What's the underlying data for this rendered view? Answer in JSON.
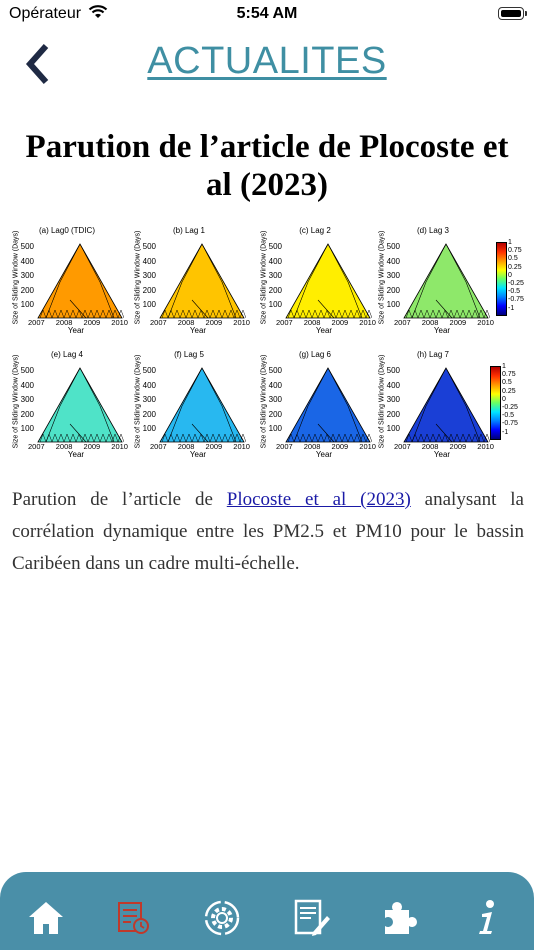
{
  "status_bar": {
    "carrier": "Opérateur",
    "time": "5:54 AM"
  },
  "header": {
    "title": "ACTUALITES",
    "back_icon": "chevron-left-icon"
  },
  "article": {
    "title": "Parution de l’article de Plocoste et al (2023)",
    "body_before": "Parution de l’article de ",
    "link_text": "Plocoste et al (2023)",
    "body_after": " analysant la corrélation dynamique entre les PM2.5 et PM10 pour le bassin Caribéen dans un cadre multi-échelle."
  },
  "figure": {
    "y_axis_label": "Size of Sliding Window (Days)",
    "x_axis_label": "Year",
    "y_ticks": [
      "500",
      "400",
      "300",
      "200",
      "100"
    ],
    "x_ticks": [
      "2007",
      "2008",
      "2009",
      "2010"
    ],
    "panels": [
      {
        "title": "(a) Lag0 (TDIC)",
        "fill": "#ff9a00"
      },
      {
        "title": "(b) Lag 1",
        "fill": "#ffc400"
      },
      {
        "title": "(c) Lag 2",
        "fill": "#ffee00"
      },
      {
        "title": "(d) Lag 3",
        "fill": "#8ee86a"
      },
      {
        "title": "(e) Lag 4",
        "fill": "#4fe3c8"
      },
      {
        "title": "(f) Lag 5",
        "fill": "#28b8f0"
      },
      {
        "title": "(g) Lag 6",
        "fill": "#1a66e6"
      },
      {
        "title": "(h) Lag 7",
        "fill": "#1a3fd6"
      }
    ],
    "colorbar_ticks": [
      "1",
      "0.75",
      "0.5",
      "0.25",
      "0",
      "-0.25",
      "-0.5",
      "-0.75",
      "-1"
    ]
  },
  "tabs": [
    {
      "icon": "home-icon",
      "color": "#ffffff"
    },
    {
      "icon": "calendar-list-icon",
      "color": "#c0392b"
    },
    {
      "icon": "gear-cycle-icon",
      "color": "#ffffff"
    },
    {
      "icon": "document-pen-icon",
      "color": "#ffffff"
    },
    {
      "icon": "puzzle-icon",
      "color": "#ffffff"
    },
    {
      "icon": "info-icon",
      "color": "#ffffff"
    }
  ]
}
